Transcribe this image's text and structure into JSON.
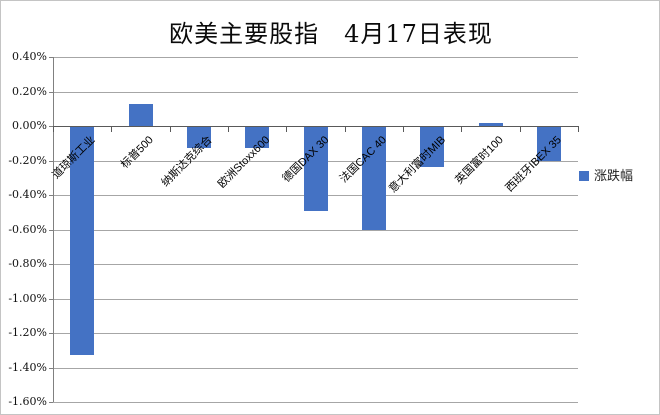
{
  "page": {
    "background": "#ffffff",
    "border_color": "#c4c4c4"
  },
  "chart_data": {
    "type": "bar",
    "title": "欧美主要股指　4月17日表现",
    "categories": [
      "道琼斯工业",
      "标普500",
      "纳斯达克综合",
      "欧洲Stoxx600",
      "德国DAX 30",
      "法国CAC 40",
      "意大利富时MIB",
      "英国富时100",
      "西班牙IBEX 35"
    ],
    "series": [
      {
        "name": "涨跌幅",
        "values": [
          -1.33,
          0.13,
          -0.13,
          -0.13,
          -0.49,
          -0.6,
          -0.24,
          0.02,
          -0.2
        ]
      }
    ],
    "y_ticks": [
      "0.40%",
      "0.20%",
      "0.00%",
      "-0.20%",
      "-0.40%",
      "-0.60%",
      "-0.80%",
      "-1.00%",
      "-1.20%",
      "-1.40%",
      "-1.60%"
    ],
    "ylim": [
      -1.6,
      0.4
    ],
    "xlabel": "",
    "ylabel": "",
    "grid": true,
    "legend_position": "right",
    "bar_color": "#4472C4"
  },
  "legend": {
    "label": "涨跌幅",
    "marker_color": "#4472C4"
  },
  "colors": {
    "bar": "#4472C4",
    "gridline": "#a6a6a6",
    "value_axis": "#808080",
    "category_axis": "#595959",
    "text": "#000000"
  }
}
